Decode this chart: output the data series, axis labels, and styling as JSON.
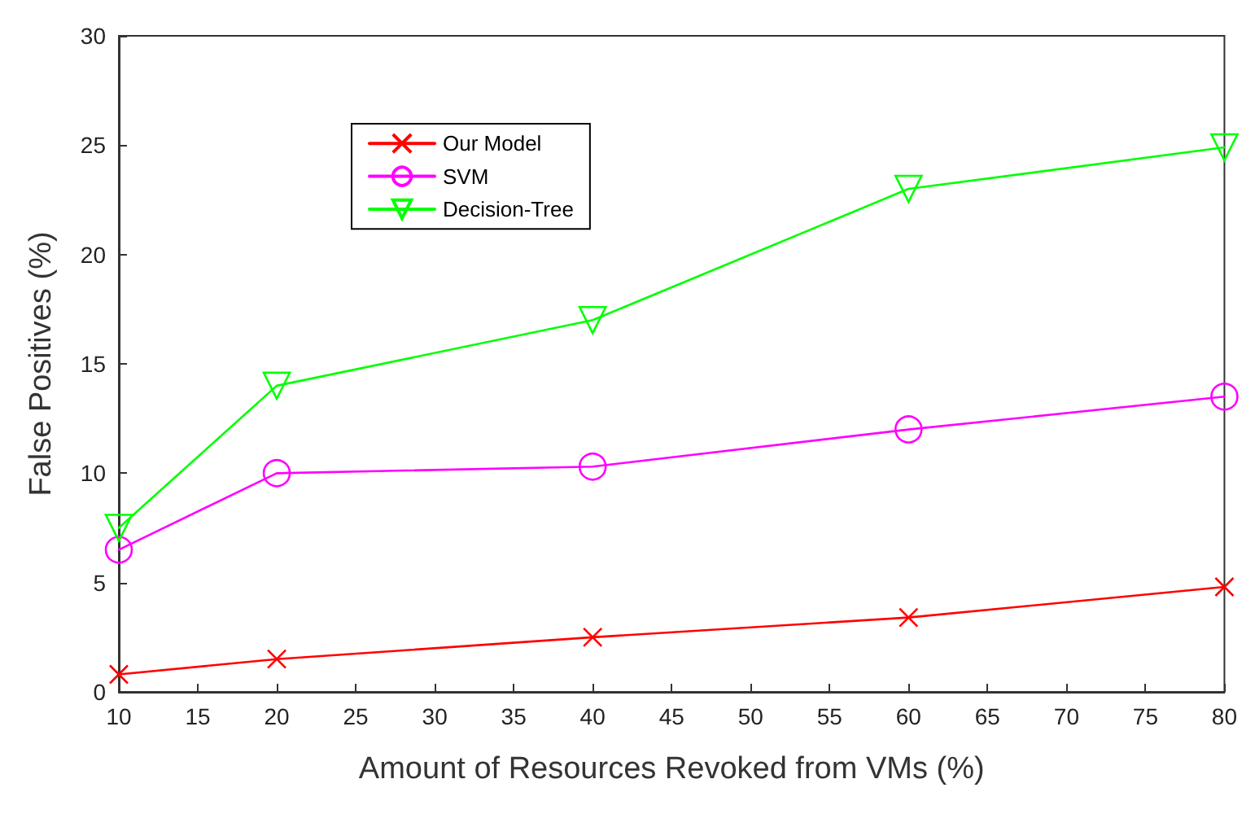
{
  "chart_data": {
    "type": "line",
    "xlabel": "Amount of Resources Revoked from VMs (%)",
    "ylabel": "False Positives (%)",
    "x": [
      10,
      20,
      40,
      60,
      80
    ],
    "series": [
      {
        "name": "Our Model",
        "color": "#ff0000",
        "marker": "cross",
        "values": [
          0.8,
          1.5,
          2.5,
          3.4,
          4.8
        ]
      },
      {
        "name": "SVM",
        "color": "#ff00ff",
        "marker": "circle",
        "values": [
          6.5,
          10,
          10.3,
          12,
          13.5
        ]
      },
      {
        "name": "Decision-Tree",
        "color": "#00ff00",
        "marker": "triangle",
        "values": [
          7.5,
          14,
          17,
          23,
          24.9
        ]
      }
    ],
    "xlim": [
      10,
      80
    ],
    "xticks": [
      10,
      15,
      20,
      25,
      30,
      35,
      40,
      45,
      50,
      55,
      60,
      65,
      70,
      75,
      80
    ],
    "ylim": [
      0,
      30
    ],
    "yticks": [
      0,
      5,
      10,
      15,
      20,
      25,
      30
    ],
    "grid": false,
    "legend": "top left",
    "line_style": "solid"
  }
}
